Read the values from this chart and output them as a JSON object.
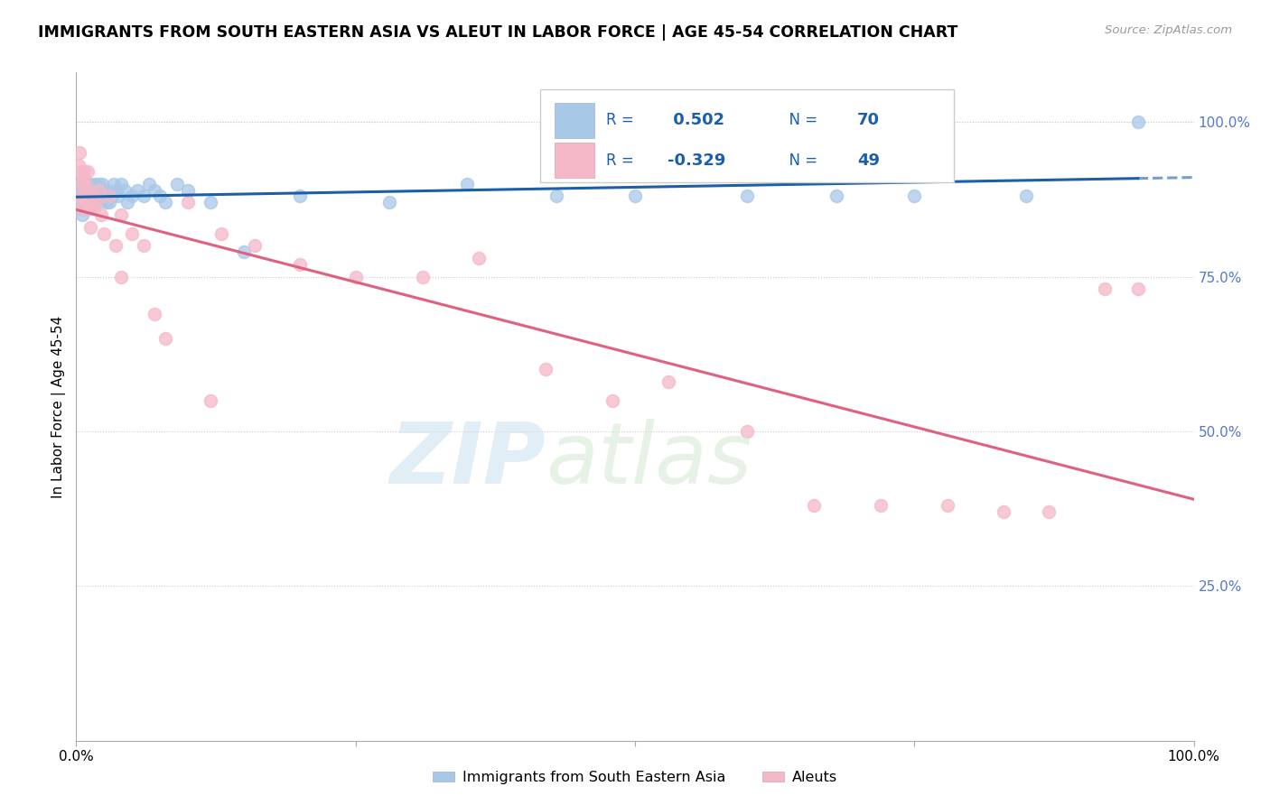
{
  "title": "IMMIGRANTS FROM SOUTH EASTERN ASIA VS ALEUT IN LABOR FORCE | AGE 45-54 CORRELATION CHART",
  "source": "Source: ZipAtlas.com",
  "ylabel": "In Labor Force | Age 45-54",
  "ytick_vals": [
    0.25,
    0.5,
    0.75,
    1.0
  ],
  "legend_label1": "Immigrants from South Eastern Asia",
  "legend_label2": "Aleuts",
  "r1": 0.502,
  "n1": 70,
  "r2": -0.329,
  "n2": 49,
  "color_blue": "#a8c8e8",
  "color_pink": "#f5b8c8",
  "line_blue": "#1a5fa8",
  "line_pink": "#e06080",
  "blue_x": [
    0.002,
    0.003,
    0.003,
    0.004,
    0.004,
    0.004,
    0.005,
    0.005,
    0.005,
    0.005,
    0.006,
    0.006,
    0.006,
    0.007,
    0.007,
    0.007,
    0.008,
    0.008,
    0.008,
    0.009,
    0.009,
    0.01,
    0.01,
    0.011,
    0.011,
    0.012,
    0.012,
    0.013,
    0.014,
    0.015,
    0.016,
    0.017,
    0.018,
    0.019,
    0.02,
    0.021,
    0.022,
    0.023,
    0.025,
    0.027,
    0.028,
    0.03,
    0.032,
    0.034,
    0.036,
    0.038,
    0.04,
    0.043,
    0.046,
    0.05,
    0.055,
    0.06,
    0.065,
    0.07,
    0.075,
    0.08,
    0.09,
    0.1,
    0.12,
    0.15,
    0.2,
    0.28,
    0.35,
    0.43,
    0.5,
    0.6,
    0.68,
    0.75,
    0.85,
    0.95
  ],
  "blue_y": [
    0.88,
    0.87,
    0.9,
    0.88,
    0.86,
    0.89,
    0.87,
    0.85,
    0.9,
    0.88,
    0.86,
    0.89,
    0.87,
    0.88,
    0.86,
    0.9,
    0.87,
    0.88,
    0.86,
    0.88,
    0.9,
    0.87,
    0.89,
    0.88,
    0.86,
    0.89,
    0.87,
    0.9,
    0.88,
    0.89,
    0.87,
    0.9,
    0.88,
    0.87,
    0.9,
    0.88,
    0.89,
    0.9,
    0.88,
    0.87,
    0.89,
    0.87,
    0.88,
    0.9,
    0.89,
    0.88,
    0.9,
    0.89,
    0.87,
    0.88,
    0.89,
    0.88,
    0.9,
    0.89,
    0.88,
    0.87,
    0.9,
    0.89,
    0.87,
    0.79,
    0.88,
    0.87,
    0.9,
    0.88,
    0.88,
    0.88,
    0.88,
    0.88,
    0.88,
    1.0
  ],
  "pink_x": [
    0.002,
    0.003,
    0.004,
    0.004,
    0.005,
    0.005,
    0.006,
    0.006,
    0.007,
    0.007,
    0.008,
    0.009,
    0.01,
    0.011,
    0.012,
    0.013,
    0.015,
    0.016,
    0.018,
    0.02,
    0.022,
    0.025,
    0.03,
    0.035,
    0.04,
    0.05,
    0.06,
    0.08,
    0.1,
    0.13,
    0.16,
    0.2,
    0.25,
    0.31,
    0.36,
    0.42,
    0.48,
    0.53,
    0.6,
    0.66,
    0.72,
    0.78,
    0.83,
    0.87,
    0.92,
    0.95,
    0.12,
    0.07,
    0.04
  ],
  "pink_y": [
    0.93,
    0.95,
    0.88,
    0.92,
    0.9,
    0.86,
    0.91,
    0.87,
    0.92,
    0.88,
    0.9,
    0.87,
    0.92,
    0.89,
    0.86,
    0.83,
    0.88,
    0.86,
    0.87,
    0.89,
    0.85,
    0.82,
    0.88,
    0.8,
    0.85,
    0.82,
    0.8,
    0.65,
    0.87,
    0.82,
    0.8,
    0.77,
    0.75,
    0.75,
    0.78,
    0.6,
    0.55,
    0.58,
    0.5,
    0.38,
    0.38,
    0.38,
    0.37,
    0.37,
    0.73,
    0.73,
    0.55,
    0.69,
    0.75
  ]
}
